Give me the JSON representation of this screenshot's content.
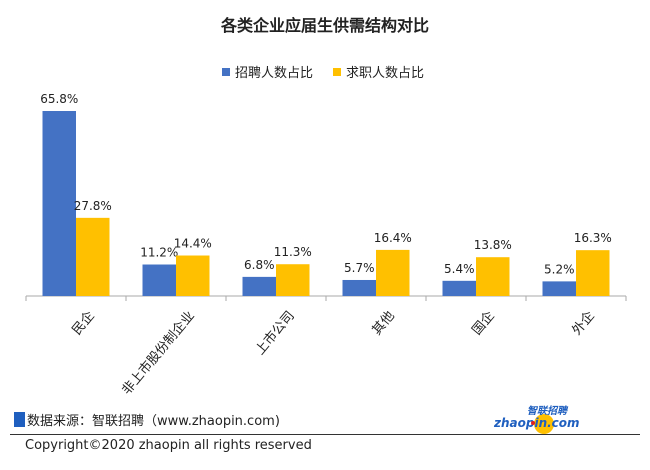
{
  "chart_data": {
    "type": "bar",
    "title": "各类企业应届生供需结构对比",
    "categories": [
      "民企",
      "非上市股份制企业",
      "上市公司",
      "其他",
      "国企",
      "外企"
    ],
    "series": [
      {
        "name": "招聘人数占比",
        "color": "#4472c4",
        "values": [
          65.8,
          11.2,
          6.8,
          5.7,
          5.4,
          5.2
        ]
      },
      {
        "name": "求职人数占比",
        "color": "#ffc000",
        "values": [
          27.8,
          14.4,
          11.3,
          16.4,
          13.8,
          16.3
        ]
      }
    ],
    "value_suffix": "%",
    "ylim": [
      0,
      70
    ],
    "grid": false,
    "legend_position": "top"
  },
  "footer": {
    "source": "数据来源：智联招聘（www.zhaopin.com)",
    "copyright": "Copyright©2020 zhaopin all rights reserved",
    "logo_text": "智联招聘",
    "logo_domain": "zhaopin.com"
  }
}
